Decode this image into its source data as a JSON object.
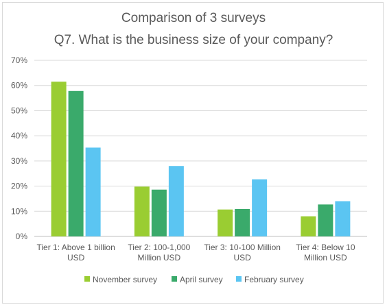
{
  "chart_data": {
    "type": "bar",
    "title": "Comparison of 3 surveys",
    "subtitle": "Q7. What is the business size of your company?",
    "categories": [
      [
        "Tier 1: Above 1 billion",
        "USD"
      ],
      [
        "Tier 2: 100-1,000",
        "Million USD"
      ],
      [
        "Tier 3: 10-100 Million",
        "USD"
      ],
      [
        "Tier 4: Below 10",
        "Million USD"
      ]
    ],
    "series": [
      {
        "name": "November survey",
        "color": "#9acd32",
        "values": [
          61.5,
          19.8,
          10.7,
          8.0
        ]
      },
      {
        "name": "April survey",
        "color": "#3aaa6b",
        "values": [
          57.8,
          18.6,
          10.9,
          12.7
        ]
      },
      {
        "name": "February survey",
        "color": "#5bc5f2",
        "values": [
          35.3,
          28.0,
          22.7,
          14.0
        ]
      }
    ],
    "ylim": [
      0,
      70
    ],
    "yticks": [
      "0%",
      "10%",
      "20%",
      "30%",
      "40%",
      "50%",
      "60%",
      "70%"
    ],
    "xlabel": "",
    "ylabel": "",
    "grid": true,
    "legend_position": "bottom"
  }
}
